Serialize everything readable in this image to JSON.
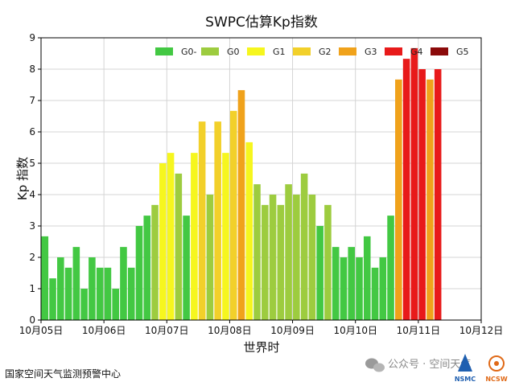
{
  "chart_data": {
    "type": "bar",
    "title": "SWPC估算Kp指数",
    "xlabel": "世界时",
    "ylabel": "Kp 指数",
    "ylim": [
      0,
      9
    ],
    "yticks": [
      "0",
      "1",
      "2",
      "3",
      "4",
      "5",
      "6",
      "7",
      "8",
      "9"
    ],
    "xticks": [
      "10月05日",
      "10月06日",
      "10月07日",
      "10月08日",
      "10月09日",
      "10月10日",
      "10月11日",
      "10月12日"
    ],
    "xlim_bars": 56,
    "bars_per_day": 8,
    "values": [
      2.67,
      1.33,
      2.0,
      1.67,
      2.33,
      1.0,
      2.0,
      1.67,
      1.67,
      1.0,
      2.33,
      1.67,
      3.0,
      3.33,
      3.67,
      5.0,
      5.33,
      4.67,
      3.33,
      5.33,
      6.33,
      4.0,
      6.33,
      5.33,
      6.67,
      7.33,
      5.67,
      4.33,
      3.67,
      4.0,
      3.67,
      4.33,
      4.0,
      4.67,
      4.0,
      3.0,
      3.67,
      2.33,
      2.0,
      2.33,
      2.0,
      2.67,
      1.67,
      2.0,
      3.33,
      7.67,
      8.33,
      8.67,
      8.0,
      7.67,
      8.0
    ],
    "grid": true,
    "legend_position": "top-right",
    "legend": [
      {
        "label": "G0-",
        "color": "#43c843"
      },
      {
        "label": "G0",
        "color": "#9dcc3f"
      },
      {
        "label": "G1",
        "color": "#f6f61e"
      },
      {
        "label": "G2",
        "color": "#f2d02a"
      },
      {
        "label": "G3",
        "color": "#f0a21b"
      },
      {
        "label": "G4",
        "color": "#e81a1a"
      },
      {
        "label": "G5",
        "color": "#8b0a0a"
      }
    ]
  },
  "footer": {
    "org": "国家空间天气监测预警中心",
    "watermark": "公众号 · 空间天气",
    "logo1": "NSMC",
    "logo2": "NCSW"
  }
}
